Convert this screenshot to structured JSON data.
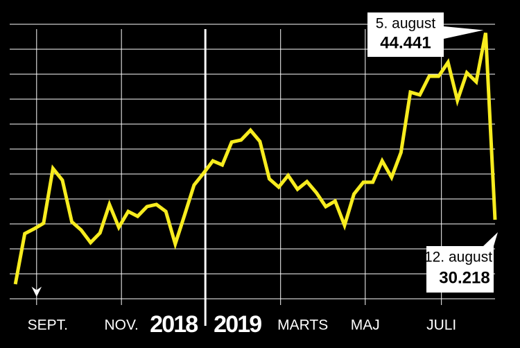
{
  "chart_data": {
    "type": "line",
    "x": [
      0,
      1,
      2,
      3,
      4,
      5,
      6,
      7,
      8,
      9,
      10,
      11,
      12,
      13,
      14,
      15,
      16,
      17,
      18,
      19,
      20,
      21,
      22,
      23,
      24,
      25,
      26,
      27,
      28,
      29,
      30,
      31,
      32,
      33,
      34,
      35,
      36,
      37,
      38,
      39,
      40,
      41,
      42,
      43,
      44,
      45,
      46,
      47,
      48,
      49,
      50,
      51
    ],
    "series": [
      {
        "color": "#f7ec1f",
        "values": [
          25.31,
          29.16,
          29.53,
          29.95,
          34.12,
          33.23,
          30.06,
          29.43,
          28.48,
          29.21,
          31.38,
          29.64,
          30.85,
          30.48,
          31.22,
          31.38,
          30.85,
          28.37,
          30.59,
          32.86,
          33.75,
          34.7,
          34.39,
          36.13,
          36.29,
          37.03,
          36.18,
          33.33,
          32.7,
          33.59,
          32.54,
          33.12,
          32.28,
          31.22,
          31.64,
          29.79,
          32.17,
          33.07,
          33.07,
          34.7,
          33.44,
          35.34,
          39.93,
          39.72,
          41.14,
          41.14,
          42.2,
          39.3,
          41.41,
          40.72,
          44.441,
          30.218
        ]
      }
    ],
    "xlim": [
      -0.6,
      51.0
    ],
    "xticks": [
      {
        "value": 2.26,
        "label": "SEPT."
      },
      {
        "value": 11.28,
        "label": "NOV."
      },
      {
        "value": 28.2,
        "label": "MARTS"
      },
      {
        "value": 37.2,
        "label": "MAJ"
      },
      {
        "value": 45.3,
        "label": "JULI"
      }
    ],
    "year_divider": {
      "value": 20.2,
      "labels": [
        "2018",
        "2019"
      ]
    },
    "ylim": [
      24.2,
      45.1
    ],
    "yticks": [
      24.2,
      26.1,
      28.0,
      29.9,
      31.8,
      33.7,
      35.6,
      37.5,
      39.4,
      41.3,
      43.2,
      45.1
    ],
    "grid": true,
    "annotations": [
      {
        "date": "5. august",
        "label": "44.441",
        "index": 50
      },
      {
        "date": "12. august",
        "label": "30.218",
        "index": 51
      }
    ]
  }
}
